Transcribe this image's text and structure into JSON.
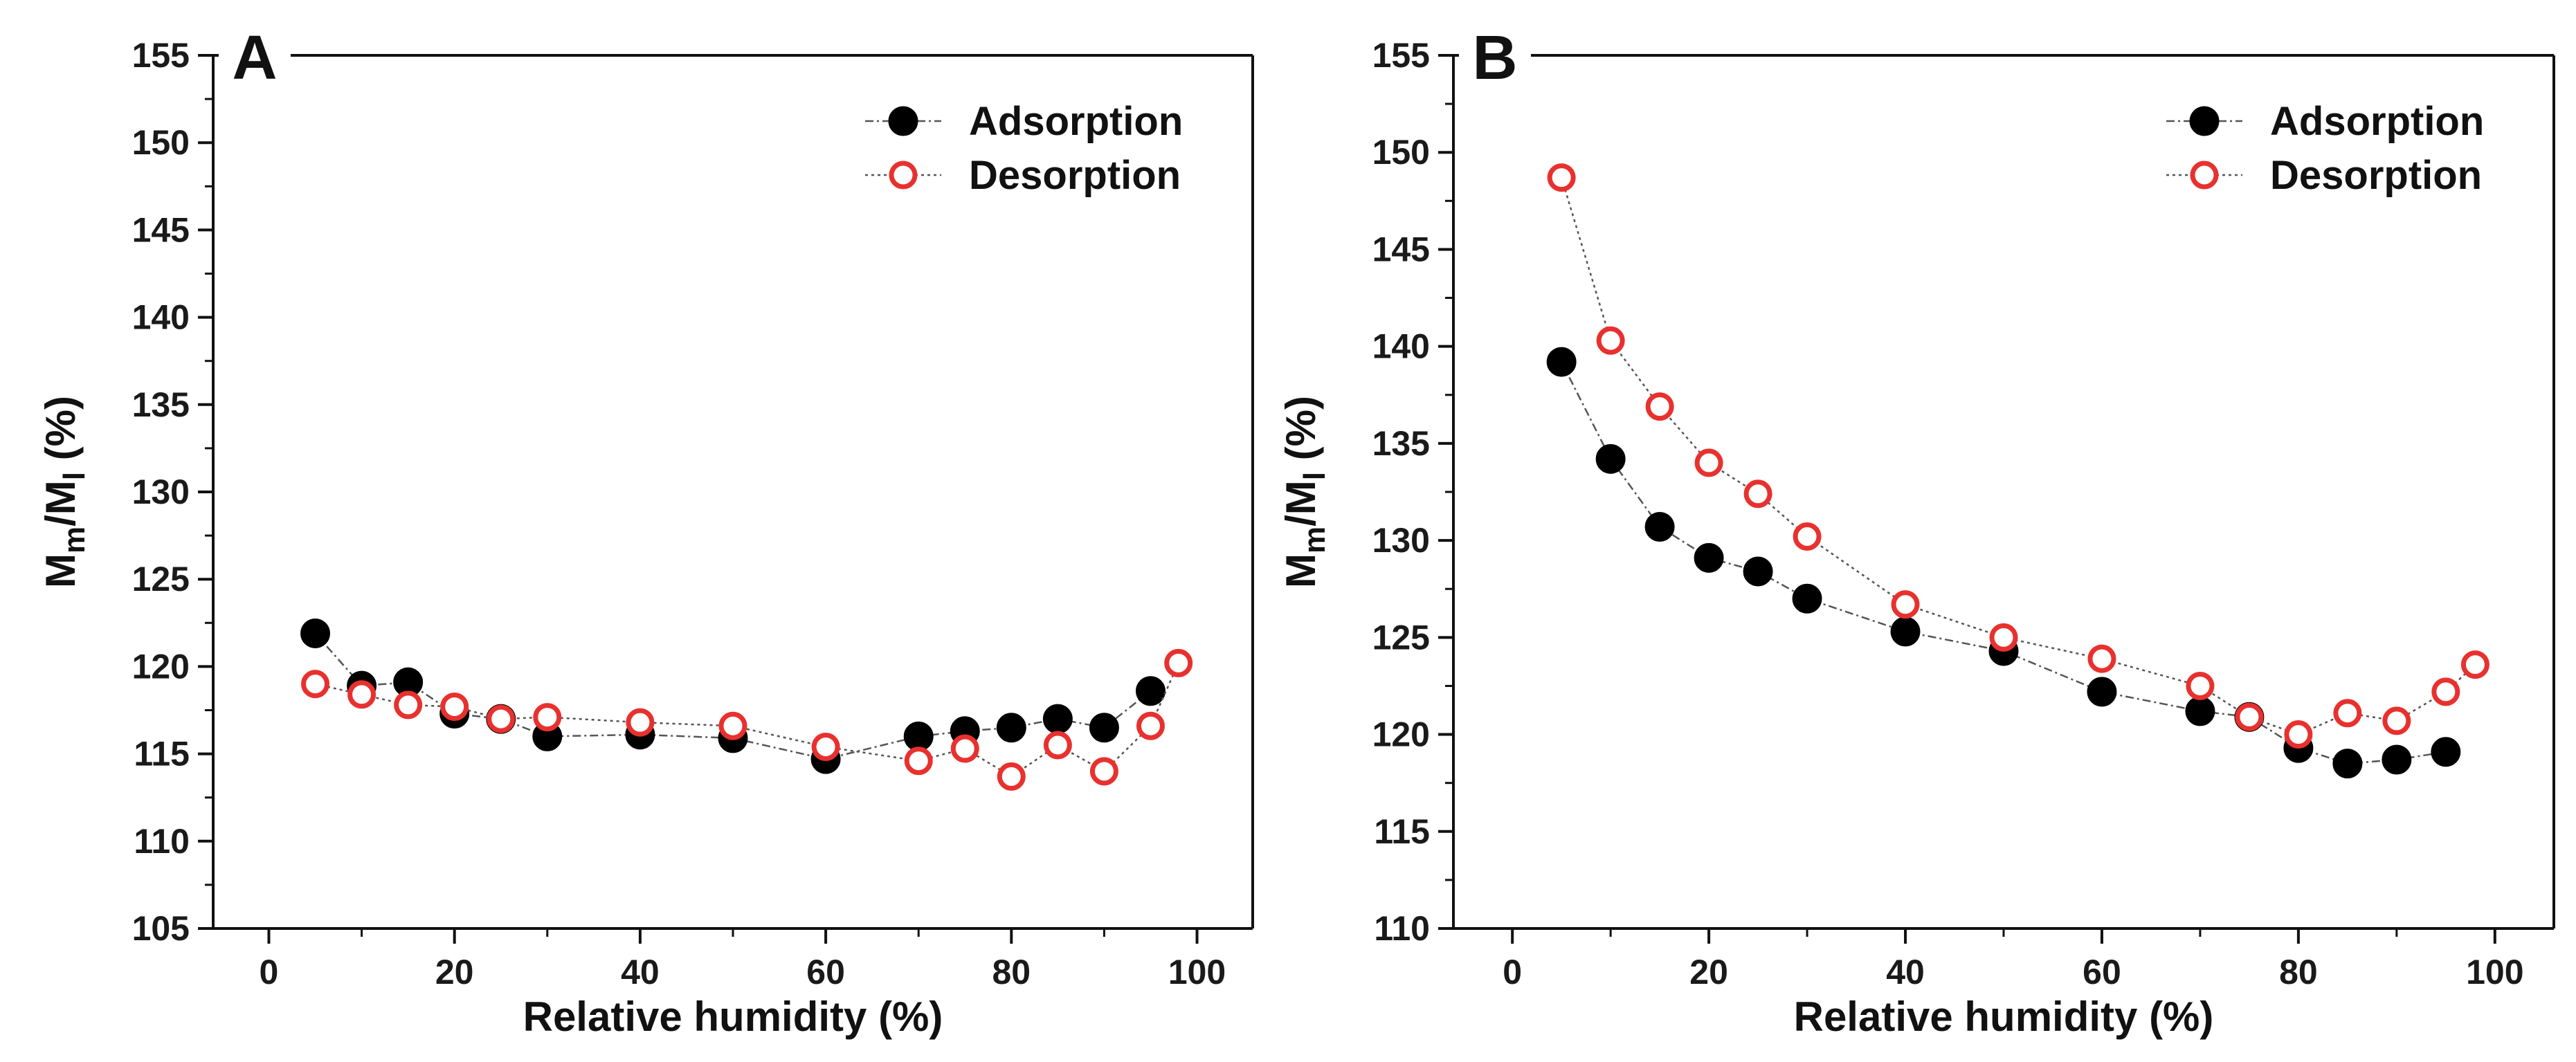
{
  "colors": {
    "adsorption": "#000000",
    "desorption": "#e8312e",
    "axis": "#111111",
    "connector": "#555555"
  },
  "chart_data": [
    {
      "type": "scatter",
      "panel": "A",
      "title": "",
      "xlabel": "Relative humidity (%)",
      "ylabel": {
        "main": "M",
        "sub1": "m",
        "sep": "/M",
        "sub2": "l",
        "unit": " (%)"
      },
      "xlim": [
        -6,
        106
      ],
      "ylim": [
        105,
        155
      ],
      "xticks": [
        0,
        20,
        40,
        60,
        80,
        100
      ],
      "yticks": [
        105,
        110,
        115,
        120,
        125,
        130,
        135,
        140,
        145,
        150,
        155
      ],
      "legend_position": "top-right",
      "grid": false,
      "series": [
        {
          "name": "Adsorption",
          "marker": "filled-circle",
          "x": [
            5,
            10,
            15,
            20,
            25,
            30,
            40,
            50,
            60,
            70,
            75,
            80,
            85,
            90,
            95
          ],
          "y": [
            121.9,
            118.9,
            119.1,
            117.3,
            117.0,
            116.0,
            116.1,
            115.9,
            114.7,
            116.0,
            116.3,
            116.5,
            117.0,
            116.5,
            118.6
          ]
        },
        {
          "name": "Desorption",
          "marker": "open-circle",
          "x": [
            5,
            10,
            15,
            20,
            25,
            30,
            40,
            50,
            60,
            70,
            75,
            80,
            85,
            90,
            95,
            98
          ],
          "y": [
            119.0,
            118.4,
            117.8,
            117.7,
            117.0,
            117.1,
            116.8,
            116.6,
            115.4,
            114.6,
            115.3,
            113.7,
            115.5,
            114.0,
            116.6,
            120.2
          ]
        }
      ]
    },
    {
      "type": "scatter",
      "panel": "B",
      "title": "",
      "xlabel": "Relative humidity (%)",
      "ylabel": {
        "main": "M",
        "sub1": "m",
        "sep": "/M",
        "sub2": "l",
        "unit": " (%)"
      },
      "xlim": [
        -6,
        106
      ],
      "ylim": [
        110,
        155
      ],
      "xticks": [
        0,
        20,
        40,
        60,
        80,
        100
      ],
      "yticks": [
        110,
        115,
        120,
        125,
        130,
        135,
        140,
        145,
        150,
        155
      ],
      "legend_position": "top-right",
      "grid": false,
      "series": [
        {
          "name": "Adsorption",
          "marker": "filled-circle",
          "x": [
            5,
            10,
            15,
            20,
            25,
            30,
            40,
            50,
            60,
            70,
            75,
            80,
            85,
            90,
            95
          ],
          "y": [
            139.2,
            134.2,
            130.7,
            129.1,
            128.4,
            127.0,
            125.3,
            124.3,
            122.2,
            121.2,
            120.9,
            119.3,
            118.5,
            118.7,
            119.1
          ]
        },
        {
          "name": "Desorption",
          "marker": "open-circle",
          "x": [
            5,
            10,
            15,
            20,
            25,
            30,
            40,
            50,
            60,
            70,
            75,
            80,
            85,
            90,
            95,
            98
          ],
          "y": [
            148.7,
            140.3,
            136.9,
            134.0,
            132.4,
            130.2,
            126.7,
            125.0,
            123.9,
            122.5,
            120.9,
            120.0,
            121.1,
            120.7,
            122.2,
            123.6
          ]
        }
      ]
    }
  ]
}
